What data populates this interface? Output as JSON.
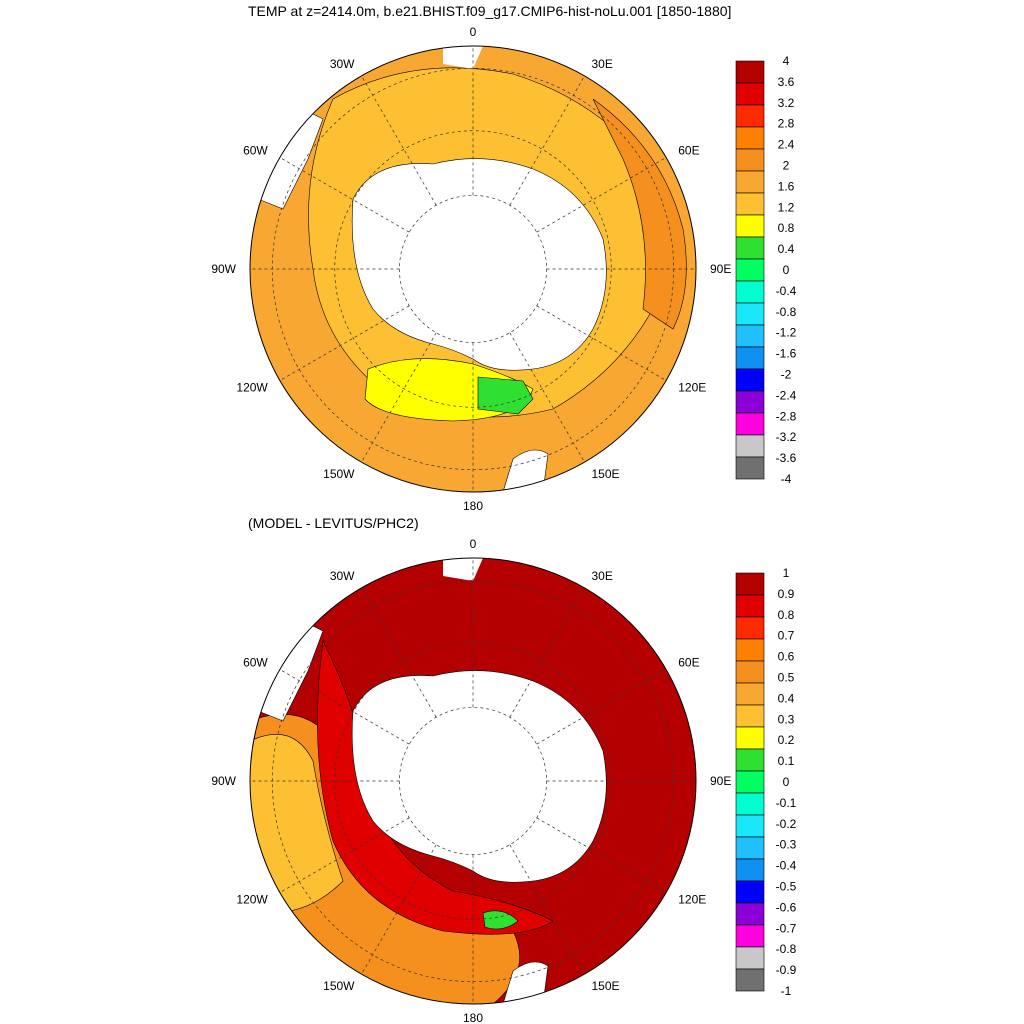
{
  "panels": [
    {
      "title": "TEMP at z=2414.0m, b.e21.BHIST.f09_g17.CMIP6-hist-noLu.001 [1850-1880]",
      "colorbar": {
        "labels": [
          "4",
          "3.6",
          "3.2",
          "2.8",
          "2.4",
          "2",
          "1.6",
          "1.2",
          "0.8",
          "0.4",
          "0",
          "-0.4",
          "-0.8",
          "-1.2",
          "-1.6",
          "-2",
          "-2.4",
          "-2.8",
          "-3.2",
          "-3.6",
          "-4"
        ],
        "colors": [
          "#b40000",
          "#e00000",
          "#ff2a00",
          "#ff8000",
          "#f5901e",
          "#f9a733",
          "#fdc032",
          "#ffff00",
          "#30e030",
          "#00ff60",
          "#00ffd0",
          "#18e8f8",
          "#20c0ff",
          "#1090f0",
          "#0000ff",
          "#8c00d8",
          "#ff00e0",
          "#c8c8c8",
          "#707070"
        ]
      }
    },
    {
      "title": "(MODEL - LEVITUS/PHC2)",
      "colorbar": {
        "labels": [
          "1",
          "0.9",
          "0.8",
          "0.7",
          "0.6",
          "0.5",
          "0.4",
          "0.3",
          "0.2",
          "0.1",
          "0",
          "-0.1",
          "-0.2",
          "-0.3",
          "-0.4",
          "-0.5",
          "-0.6",
          "-0.7",
          "-0.8",
          "-0.9",
          "-1"
        ],
        "colors": [
          "#b40000",
          "#e00000",
          "#ff2a00",
          "#ff8000",
          "#f5901e",
          "#f9a733",
          "#fdc032",
          "#ffff00",
          "#30e030",
          "#00ff60",
          "#00ffd0",
          "#18e8f8",
          "#20c0ff",
          "#1090f0",
          "#0000ff",
          "#8c00d8",
          "#ff00e0",
          "#c8c8c8",
          "#707070"
        ]
      }
    }
  ],
  "lon_labels": [
    "0",
    "30E",
    "60E",
    "90E",
    "120E",
    "150E",
    "180",
    "150W",
    "120W",
    "90W",
    "60W",
    "30W"
  ],
  "map_fields": {
    "top": {
      "background": "#f9a733",
      "regions": [
        {
          "name": "band-1.6-2.0",
          "color": "#fdc032"
        },
        {
          "name": "band-1.2-1.6",
          "color": "#ffff00"
        },
        {
          "name": "band-0.4-0.8",
          "color": "#30e030"
        },
        {
          "name": "band-2.4-2.8",
          "color": "#f5901e"
        }
      ]
    },
    "bottom": {
      "background": "#b40000",
      "regions": [
        {
          "name": "band-0.5-0.7",
          "color": "#f5901e"
        },
        {
          "name": "band-0.3-0.5",
          "color": "#fdc032"
        },
        {
          "name": "band-0.7-0.9",
          "color": "#e00000"
        },
        {
          "name": "band-0.1-0.3",
          "color": "#30e030"
        }
      ]
    }
  }
}
